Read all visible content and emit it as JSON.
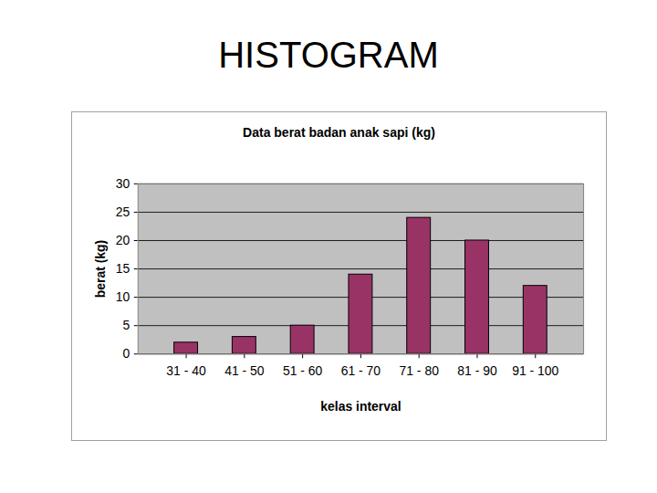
{
  "heading": "HISTOGRAM",
  "chart_data": {
    "type": "bar",
    "title": "Data berat badan anak sapi (kg)",
    "x_label": "kelas interval",
    "y_label": "berat (kg)",
    "categories": [
      "31 - 40",
      "41 - 50",
      "51 - 60",
      "61 - 70",
      "71 - 80",
      "81 - 90",
      "91 - 100"
    ],
    "values": [
      2,
      3,
      5,
      14,
      24,
      20,
      12
    ],
    "color": "#993366",
    "ylim": [
      0,
      30
    ],
    "yticks": [
      0,
      5,
      10,
      15,
      20,
      25,
      30
    ],
    "grid": true
  }
}
